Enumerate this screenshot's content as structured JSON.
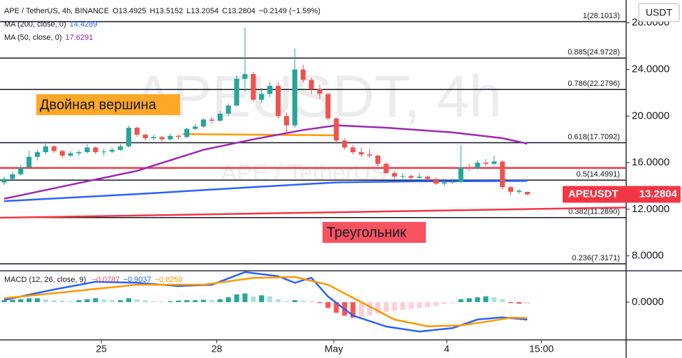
{
  "chart_data": [
    {
      "type": "candlestick",
      "title": "APE / TetherUS, 4h, BINANCE",
      "ohlc_labels": [
        "O13.4925",
        "H13.5152",
        "L13.2054",
        "C13.2804",
        "−0.2149 (−1.59%)"
      ],
      "watermark": "APEUSDT, 4h",
      "watermark_subtitle": "APE / TetherUS",
      "currency": "USDT",
      "colors": {
        "up": "#26a69a",
        "down": "#ef5350"
      },
      "candles": [
        [
          14.3,
          14.8,
          14.1,
          14.6
        ],
        [
          14.6,
          15.2,
          14.5,
          15.0
        ],
        [
          15.0,
          15.8,
          14.9,
          15.6
        ],
        [
          15.6,
          17.0,
          15.5,
          16.5
        ],
        [
          16.5,
          17.1,
          16.2,
          16.9
        ],
        [
          16.9,
          17.8,
          16.7,
          17.4
        ],
        [
          17.4,
          17.5,
          16.8,
          17.0
        ],
        [
          17.0,
          17.1,
          16.4,
          16.6
        ],
        [
          16.6,
          17.0,
          16.5,
          16.8
        ],
        [
          16.8,
          17.1,
          16.6,
          16.9
        ],
        [
          16.9,
          17.6,
          16.8,
          17.3
        ],
        [
          17.3,
          17.4,
          16.7,
          16.9
        ],
        [
          16.9,
          17.2,
          16.6,
          16.95
        ],
        [
          16.95,
          17.3,
          16.8,
          17.1
        ],
        [
          17.1,
          17.6,
          17.0,
          17.4
        ],
        [
          17.4,
          19.2,
          17.3,
          19.0
        ],
        [
          19.0,
          19.1,
          18.2,
          18.4
        ],
        [
          18.4,
          18.5,
          17.9,
          18.1
        ],
        [
          18.1,
          18.4,
          17.9,
          18.2
        ],
        [
          18.2,
          18.3,
          17.8,
          18.0
        ],
        [
          18.0,
          18.5,
          17.9,
          18.3
        ],
        [
          18.3,
          18.4,
          18.0,
          18.2
        ],
        [
          18.2,
          19.0,
          18.1,
          18.9
        ],
        [
          18.9,
          19.3,
          18.8,
          19.1
        ],
        [
          19.1,
          19.8,
          19.0,
          19.7
        ],
        [
          19.7,
          19.9,
          19.4,
          19.6
        ],
        [
          19.6,
          20.4,
          19.5,
          20.2
        ],
        [
          20.2,
          21.1,
          20.0,
          20.9
        ],
        [
          20.9,
          23.5,
          20.8,
          23.2
        ],
        [
          23.2,
          27.6,
          22.1,
          23.6
        ],
        [
          23.6,
          23.8,
          21.2,
          21.4
        ],
        [
          21.4,
          22.4,
          21.1,
          21.9
        ],
        [
          21.9,
          22.9,
          21.6,
          22.6
        ],
        [
          22.6,
          22.9,
          19.8,
          20.0
        ],
        [
          20.0,
          20.3,
          18.5,
          19.2
        ],
        [
          19.2,
          25.8,
          19.0,
          24.0
        ],
        [
          24.0,
          24.4,
          22.9,
          23.1
        ],
        [
          23.1,
          23.3,
          21.9,
          22.3
        ],
        [
          22.3,
          22.7,
          21.5,
          21.9
        ],
        [
          21.9,
          22.0,
          19.6,
          19.8
        ],
        [
          19.8,
          19.9,
          17.6,
          17.9
        ],
        [
          17.9,
          18.1,
          17.1,
          17.3
        ],
        [
          17.3,
          17.5,
          16.7,
          16.9
        ],
        [
          16.9,
          17.3,
          16.5,
          16.7
        ],
        [
          16.7,
          17.2,
          16.4,
          16.6
        ],
        [
          16.6,
          16.7,
          15.7,
          15.9
        ],
        [
          15.9,
          16.0,
          15.0,
          15.1
        ],
        [
          15.1,
          15.3,
          14.6,
          14.8
        ],
        [
          14.8,
          15.1,
          14.6,
          14.85
        ],
        [
          14.85,
          15.0,
          14.5,
          14.7
        ],
        [
          14.7,
          15.1,
          14.6,
          14.8
        ],
        [
          14.8,
          14.9,
          14.4,
          14.6
        ],
        [
          14.6,
          14.7,
          14.1,
          14.2
        ],
        [
          14.2,
          14.5,
          14.0,
          14.3
        ],
        [
          14.3,
          14.6,
          14.2,
          14.35
        ],
        [
          14.35,
          17.5,
          14.2,
          15.6
        ],
        [
          15.6,
          15.9,
          15.3,
          15.5
        ],
        [
          15.5,
          16.2,
          15.4,
          16.0
        ],
        [
          16.0,
          16.3,
          15.7,
          15.9
        ],
        [
          15.9,
          16.6,
          15.8,
          16.1
        ],
        [
          16.1,
          16.2,
          13.7,
          13.9
        ],
        [
          13.9,
          14.0,
          13.2,
          13.5
        ],
        [
          13.5,
          13.7,
          13.3,
          13.6
        ],
        [
          13.4925,
          13.5152,
          13.2054,
          13.2804
        ]
      ],
      "xlim": [
        -0.5,
        74.9
      ],
      "xticks": [
        {
          "value": 11.7,
          "label": "25"
        },
        {
          "value": 25.6,
          "label": "28"
        },
        {
          "value": 39.7,
          "label": "May"
        },
        {
          "value": 53.3,
          "label": "4"
        },
        {
          "value": 64.7,
          "label": "15:00"
        }
      ],
      "ylim": [
        6.72,
        29.96
      ],
      "yticks": [
        {
          "value": 8,
          "label": "8.0000"
        },
        {
          "value": 12,
          "label": "12.0000"
        },
        {
          "value": 16,
          "label": "16.0000"
        },
        {
          "value": 20,
          "label": "20.0000"
        },
        {
          "value": 24,
          "label": "24.0000"
        },
        {
          "value": 28,
          "label": "28.0000"
        }
      ],
      "series": [
        {
          "name": "MA (200, close, 0)",
          "last": 14.4289,
          "color": "#2962ff",
          "x": [
            0,
            16,
            30,
            40,
            50,
            63
          ],
          "values": [
            12.7,
            13.3,
            13.9,
            14.3,
            14.4,
            14.4289
          ]
        },
        {
          "name": "MA (50, close, 0)",
          "last": 17.6291,
          "color": "#9c27b0",
          "x": [
            0,
            8,
            16,
            24,
            30,
            36,
            40,
            46,
            54,
            60,
            63
          ],
          "values": [
            12.9,
            14.1,
            15.3,
            17.1,
            18.0,
            18.8,
            19.2,
            19.0,
            18.6,
            18.1,
            17.6291
          ]
        }
      ],
      "fib_levels": [
        {
          "value": 28.1013,
          "label": "1(28.1013)"
        },
        {
          "value": 24.9728,
          "label": "0.885(24.9728)"
        },
        {
          "value": 22.2796,
          "label": "0.786(22.2796)"
        },
        {
          "value": 17.7092,
          "label": "0.618(17.7092)"
        },
        {
          "value": 14.4991,
          "label": "0.5(14.4991)"
        },
        {
          "value": 11.289,
          "label": "0.382(11.2890)"
        },
        {
          "value": 7.3171,
          "label": "0.236(7.3171)"
        }
      ],
      "drawings": [
        {
          "color": "#f23645",
          "x": [
            -0.5,
            74.9
          ],
          "values": [
            15.55,
            15.55
          ]
        },
        {
          "color": "#f23645",
          "x": [
            -0.5,
            74.9
          ],
          "values": [
            11.27,
            12.15
          ]
        },
        {
          "color": "#ff9800",
          "x": [
            21.5,
            39.7
          ],
          "values": [
            18.45,
            18.35
          ]
        }
      ],
      "annotations": [
        {
          "text": "Двойная вершина",
          "color": "#ffa726"
        },
        {
          "text": "Треугольник",
          "color": "#f7525f"
        }
      ],
      "last_price": {
        "label": "APEUSDT",
        "value": 13.2804,
        "color": "#f23645"
      }
    },
    {
      "type": "macd",
      "title": "MACD (12, 26, close, 9)",
      "legend_values": [
        {
          "label": "−0.0787",
          "color": "#ef5350"
        },
        {
          "label": "−0.9037",
          "color": "#2962ff"
        },
        {
          "label": "−0.8250",
          "color": "#ff9800"
        }
      ],
      "histogram": [
        0.1,
        0.12,
        0.15,
        0.2,
        0.2,
        0.15,
        0.1,
        0.08,
        0.05,
        0.1,
        0.15,
        0.2,
        0.15,
        0.1,
        0.1,
        0.2,
        0.15,
        0.1,
        0.05,
        0.03,
        0.05,
        0.08,
        0.1,
        0.1,
        0.12,
        0.1,
        0.15,
        0.25,
        0.4,
        0.45,
        0.3,
        0.35,
        0.3,
        0.15,
        0.05,
        0.1,
        0.08,
        0.05,
        -0.05,
        -0.3,
        -0.55,
        -0.7,
        -0.8,
        -0.75,
        -0.7,
        -0.6,
        -0.5,
        -0.45,
        -0.4,
        -0.35,
        -0.3,
        -0.25,
        -0.2,
        -0.1,
        -0.05,
        0.15,
        0.2,
        0.25,
        0.3,
        0.25,
        0.15,
        -0.05,
        -0.08,
        -0.0787
      ],
      "series": [
        {
          "name": "MACD",
          "color": "#2962ff",
          "x": [
            0,
            6,
            11,
            16,
            21,
            25,
            29,
            33,
            35,
            37,
            39,
            42,
            46,
            50,
            54,
            57,
            60,
            63
          ],
          "values": [
            0.11,
            0.65,
            1.05,
            1.0,
            0.83,
            0.9,
            1.55,
            1.34,
            1.0,
            1.26,
            0.29,
            -0.69,
            -1.26,
            -1.52,
            -1.34,
            -0.9,
            -0.79,
            -0.9037
          ]
        },
        {
          "name": "Signal",
          "color": "#ff9800",
          "x": [
            0,
            8,
            16,
            24,
            30,
            35,
            39,
            43,
            47,
            51,
            55,
            59,
            61,
            63
          ],
          "values": [
            0.2,
            0.55,
            0.9,
            0.9,
            1.25,
            1.3,
            0.9,
            0.0,
            -0.9,
            -1.25,
            -1.2,
            -0.95,
            -0.8,
            -0.825
          ]
        }
      ],
      "ylim": [
        -1.95,
        1.62
      ],
      "yticks": [
        {
          "value": 0,
          "label": "0.0000"
        }
      ]
    }
  ]
}
